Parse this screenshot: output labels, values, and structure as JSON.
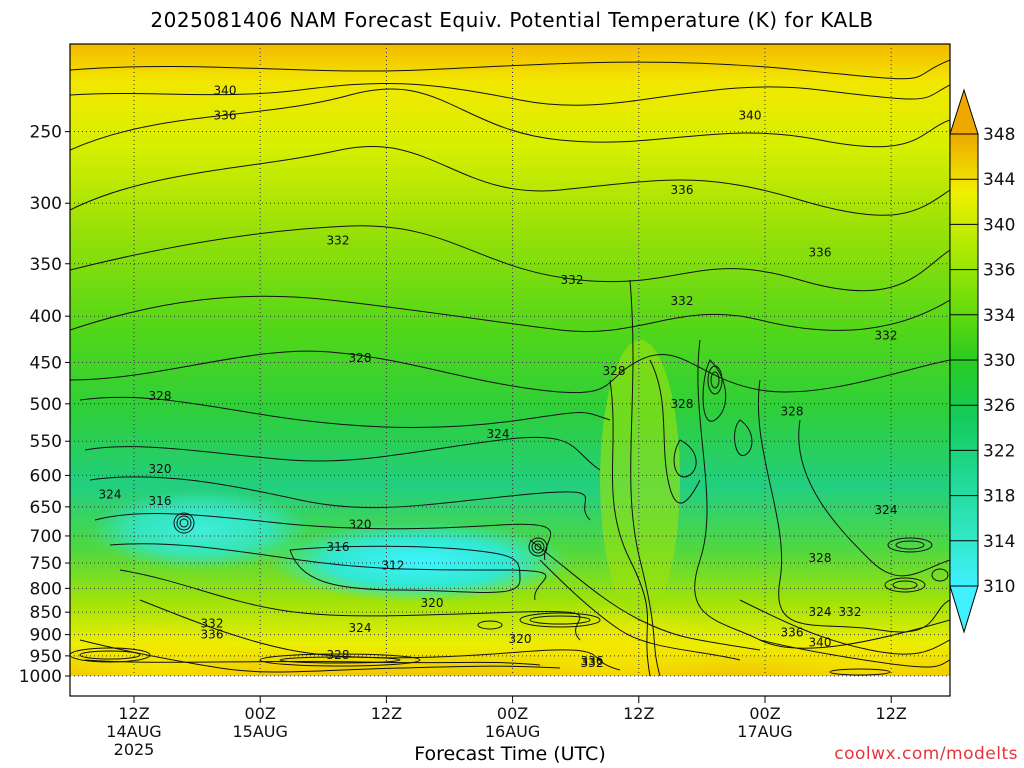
{
  "title": "2025081406 NAM Forecast Equiv. Potential Temperature (K) for KALB",
  "xlabel": "Forecast Time (UTC)",
  "credit": "coolwx.com/modelts",
  "chart_data": {
    "type": "heatmap",
    "title": "2025081406 NAM Forecast Equiv. Potential Temperature (K) for KALB",
    "xlabel": "Forecast Time (UTC)",
    "ylabel": "",
    "y_ticks": [
      250,
      300,
      350,
      400,
      450,
      500,
      550,
      600,
      650,
      700,
      750,
      800,
      850,
      900,
      950,
      1000
    ],
    "y_scale": "log pressure (inverted)",
    "x_ticks": [
      {
        "time": "12Z",
        "date": "14AUG",
        "year": "2025"
      },
      {
        "time": "00Z",
        "date": "15AUG",
        "year": ""
      },
      {
        "time": "12Z",
        "date": "",
        "year": ""
      },
      {
        "time": "00Z",
        "date": "16AUG",
        "year": ""
      },
      {
        "time": "12Z",
        "date": "",
        "year": ""
      },
      {
        "time": "00Z",
        "date": "17AUG",
        "year": ""
      },
      {
        "time": "12Z",
        "date": "",
        "year": ""
      }
    ],
    "colorbar": {
      "levels": [
        310,
        314,
        318,
        322,
        326,
        330,
        334,
        336,
        340,
        344,
        348
      ],
      "colors": [
        "#40f0ff",
        "#30e6c0",
        "#20d890",
        "#10cc5a",
        "#22cc22",
        "#4ed614",
        "#7ee00a",
        "#b0ea02",
        "#f0f000",
        "#f5d000",
        "#e8a000"
      ]
    },
    "contour_labels": [
      {
        "value": "340",
        "time": "12Z 14AUG+",
        "p": 225
      },
      {
        "value": "336",
        "time": "12Z 14AUG+",
        "p": 240
      },
      {
        "value": "340",
        "time": "00Z 17AUG-",
        "p": 240
      },
      {
        "value": "336",
        "time": "12Z 16AUG+",
        "p": 290
      },
      {
        "value": "332",
        "time": "00Z 15AUG+",
        "p": 330
      },
      {
        "value": "336",
        "time": "00Z 17AUG+",
        "p": 340
      },
      {
        "value": "332",
        "time": "00Z 16AUG+",
        "p": 365
      },
      {
        "value": "332",
        "time": "12Z 16AUG+",
        "p": 385
      },
      {
        "value": "328",
        "time": "12Z 15AUG-",
        "p": 445
      },
      {
        "value": "332",
        "time": "12Z 17AUG",
        "p": 420
      },
      {
        "value": "328",
        "time": "12Z 16AUG",
        "p": 460
      },
      {
        "value": "328",
        "time": "12Z 14AUG",
        "p": 490
      },
      {
        "value": "328",
        "time": "12Z 16AUG+",
        "p": 500
      },
      {
        "value": "328",
        "time": "00Z 17AUG",
        "p": 510
      },
      {
        "value": "324",
        "time": "00Z 16AUG-",
        "p": 540
      },
      {
        "value": "320",
        "time": "12Z 14AUG",
        "p": 590
      },
      {
        "value": "324",
        "time": "12Z 14AUG-",
        "p": 630
      },
      {
        "value": "316",
        "time": "12Z 14AUG",
        "p": 640
      },
      {
        "value": "320",
        "time": "12Z 15AUG-",
        "p": 680
      },
      {
        "value": "316",
        "time": "00Z 15AUG+",
        "p": 720
      },
      {
        "value": "324",
        "time": "12Z 17AUG",
        "p": 655
      },
      {
        "value": "312",
        "time": "12Z 15AUG",
        "p": 755
      },
      {
        "value": "328",
        "time": "00Z 17AUG+",
        "p": 740
      },
      {
        "value": "320",
        "time": "12Z 15AUG+",
        "p": 830
      },
      {
        "value": "332",
        "time": "00Z 15AUG-",
        "p": 875
      },
      {
        "value": "324",
        "time": "00Z 17AUG+",
        "p": 850
      },
      {
        "value": "332",
        "time": "00Z 17AUG+",
        "p": 850
      },
      {
        "value": "324",
        "time": "12Z 15AUG-",
        "p": 885
      },
      {
        "value": "336",
        "time": "00Z 15AUG-",
        "p": 900
      },
      {
        "value": "336",
        "time": "00Z 17AUG",
        "p": 895
      },
      {
        "value": "320",
        "time": "00Z 16AUG",
        "p": 910
      },
      {
        "value": "340",
        "time": "00Z 17AUG+",
        "p": 918
      },
      {
        "value": "328",
        "time": "00Z 15AUG+",
        "p": 948
      },
      {
        "value": "332",
        "time": "12Z 16AUG-",
        "p": 968
      },
      {
        "value": "336",
        "time": "12Z 16AUG-",
        "p": 962
      }
    ],
    "grid": true,
    "legend": "colorbar-right"
  }
}
